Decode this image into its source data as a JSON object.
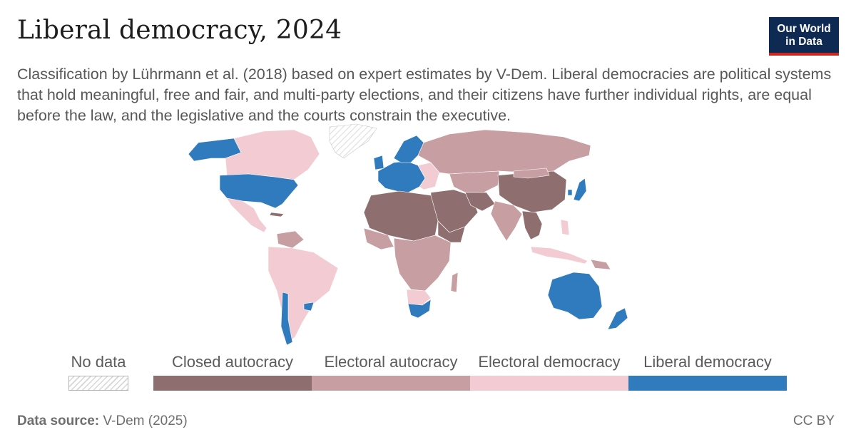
{
  "header": {
    "title": "Liberal democracy, 2024",
    "subtitle": "Classification by Lührmann et al. (2018) based on expert estimates by V-Dem. Liberal democracies are political systems that hold meaningful, free and fair, and multi-party elections, and their citizens have further individual rights, are equal before the law, and the legislative and the courts constrain the executive."
  },
  "logo": {
    "line1": "Our World",
    "line2": "in Data"
  },
  "legend": {
    "no_data": {
      "label": "No data"
    },
    "categories": [
      {
        "label": "Closed autocracy",
        "color": "#8f6e6f"
      },
      {
        "label": "Electoral autocracy",
        "color": "#c79ea2"
      },
      {
        "label": "Electoral democracy",
        "color": "#f2ccd2"
      },
      {
        "label": "Liberal democracy",
        "color": "#2f7bbd"
      }
    ]
  },
  "footer": {
    "source_label": "Data source:",
    "source_value": "V-Dem (2025)",
    "license": "CC BY"
  },
  "colors": {
    "closed_autocracy": "#8f6e6f",
    "electoral_autocracy": "#c79ea2",
    "electoral_democracy": "#f2ccd2",
    "liberal_democracy": "#2f7bbd",
    "no_data_hatch": "#d6d6d6",
    "brand_navy": "#0e2a52",
    "brand_red": "#ce261e"
  }
}
